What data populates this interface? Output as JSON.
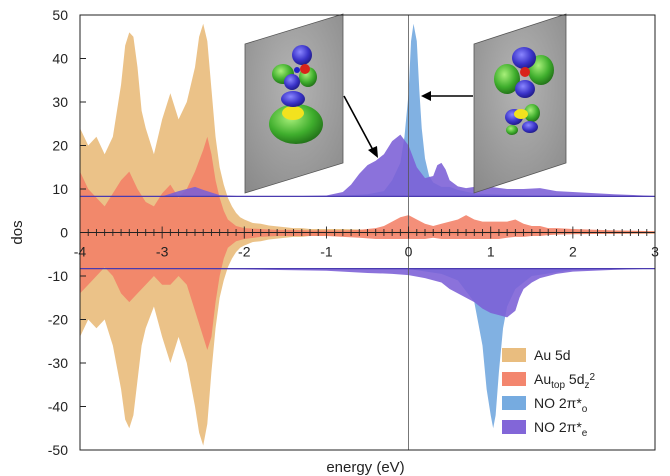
{
  "chart_data": {
    "type": "area",
    "xlabel": "energy (eV)",
    "ylabel": "dos",
    "xlim": [
      -4,
      3
    ],
    "ylim": [
      -50,
      50
    ],
    "x_ticks": [
      -4,
      -3,
      -2,
      -1,
      0,
      1,
      2,
      3
    ],
    "y_ticks": [
      -50,
      -40,
      -30,
      -20,
      -10,
      0,
      10,
      20,
      30,
      40,
      50
    ],
    "legend_position": "bottom-right",
    "series": [
      {
        "name": "Au 5d",
        "legend": {
          "main": "Au  5d"
        },
        "color": "#e8b978",
        "baseline": 0,
        "upper": {
          "x": [
            -4.0,
            -3.9,
            -3.8,
            -3.7,
            -3.6,
            -3.5,
            -3.45,
            -3.4,
            -3.35,
            -3.3,
            -3.25,
            -3.2,
            -3.1,
            -3.0,
            -2.9,
            -2.8,
            -2.7,
            -2.6,
            -2.55,
            -2.5,
            -2.45,
            -2.4,
            -2.35,
            -2.3,
            -2.25,
            -2.2,
            -2.15,
            -2.1,
            -2.05,
            -2.0,
            -1.9,
            -1.8,
            -1.7,
            -1.6,
            -1.5,
            -1.4,
            -1.3,
            -1.2,
            -1.1,
            -1.0,
            -0.8,
            -0.6,
            -0.4,
            -0.2,
            0.0,
            0.2,
            0.4,
            0.6,
            0.8,
            1.0,
            1.2,
            1.5,
            1.8,
            2.0,
            2.5,
            3.0
          ],
          "y": [
            24,
            20,
            22,
            18,
            22,
            34,
            43,
            46,
            45,
            38,
            28,
            24,
            18,
            26,
            32,
            26,
            30,
            38,
            45,
            48,
            44,
            33,
            22,
            15,
            11,
            8,
            6,
            4.5,
            3.5,
            3,
            2.2,
            2.0,
            1.6,
            1.4,
            1.2,
            1.0,
            1.0,
            0.8,
            0.8,
            0.8,
            0.8,
            0.7,
            0.6,
            0.5,
            0.5,
            0.5,
            0.5,
            0.5,
            0.4,
            0.4,
            0.4,
            0.3,
            0.3,
            0.3,
            0.3,
            0.3
          ]
        },
        "lower": {
          "x": [
            -4.0,
            -3.9,
            -3.8,
            -3.7,
            -3.6,
            -3.5,
            -3.45,
            -3.4,
            -3.35,
            -3.3,
            -3.25,
            -3.2,
            -3.1,
            -3.0,
            -2.9,
            -2.8,
            -2.7,
            -2.6,
            -2.55,
            -2.5,
            -2.45,
            -2.4,
            -2.35,
            -2.3,
            -2.25,
            -2.2,
            -2.15,
            -2.1,
            -2.05,
            -2.0,
            -1.9,
            -1.8,
            -1.7,
            -1.6,
            -1.5,
            -1.4,
            -1.3,
            -1.2,
            -1.1,
            -1.0,
            -0.8,
            -0.6,
            -0.4,
            -0.2,
            0.0,
            0.2,
            0.4,
            0.6,
            0.8,
            1.0,
            1.2,
            1.5,
            1.8,
            2.0,
            2.5,
            3.0
          ],
          "y": [
            -24,
            -20,
            -22,
            -20,
            -26,
            -36,
            -43,
            -45,
            -42,
            -34,
            -26,
            -22,
            -17,
            -24,
            -30,
            -24,
            -30,
            -40,
            -46,
            -49,
            -44,
            -32,
            -22,
            -15,
            -11,
            -8,
            -6,
            -4.5,
            -3.5,
            -3,
            -2.2,
            -2.0,
            -1.6,
            -1.4,
            -1.2,
            -1.0,
            -1.0,
            -0.8,
            -0.8,
            -0.8,
            -0.8,
            -0.7,
            -0.6,
            -0.5,
            -0.5,
            -0.5,
            -0.5,
            -0.5,
            -0.4,
            -0.4,
            -0.4,
            -0.3,
            -0.3,
            -0.3,
            -0.3,
            -0.3
          ]
        }
      },
      {
        "name": "Au_top 5d_z2",
        "legend": {
          "main": "Au",
          "sub": "top",
          "mid": " 5d",
          "sub2": "z",
          "sup": "2"
        },
        "color": "#f28066",
        "baseline": 0,
        "upper": {
          "x": [
            -4.0,
            -3.9,
            -3.8,
            -3.7,
            -3.6,
            -3.5,
            -3.4,
            -3.3,
            -3.2,
            -3.1,
            -3.0,
            -2.9,
            -2.8,
            -2.7,
            -2.6,
            -2.5,
            -2.45,
            -2.4,
            -2.35,
            -2.3,
            -2.25,
            -2.2,
            -2.1,
            -2.0,
            -1.8,
            -1.6,
            -1.4,
            -1.2,
            -1.0,
            -0.8,
            -0.6,
            -0.4,
            -0.3,
            -0.2,
            -0.1,
            0.0,
            0.1,
            0.2,
            0.3,
            0.4,
            0.5,
            0.6,
            0.7,
            0.8,
            0.9,
            1.0,
            1.1,
            1.2,
            1.3,
            1.4,
            1.5,
            1.6,
            1.7,
            1.8,
            2.0,
            2.5,
            3.0
          ],
          "y": [
            14,
            10,
            8,
            6,
            9,
            12,
            14,
            10,
            7,
            6,
            9,
            11,
            8,
            10,
            14,
            19,
            22,
            18,
            12,
            8,
            5,
            3,
            1.5,
            1.0,
            0.8,
            0.6,
            0.6,
            0.5,
            0.5,
            0.5,
            0.6,
            1.0,
            1.5,
            2.5,
            3.5,
            4.0,
            3.0,
            2.0,
            1.5,
            2.0,
            2.5,
            3.0,
            4.0,
            3.0,
            2.5,
            2.5,
            2.5,
            2.5,
            3.0,
            2.0,
            1.5,
            1.5,
            1.0,
            1.0,
            0.8,
            0.5,
            0.3
          ]
        },
        "lower": {
          "x": [
            -4.0,
            -3.9,
            -3.8,
            -3.7,
            -3.6,
            -3.5,
            -3.4,
            -3.3,
            -3.2,
            -3.1,
            -3.0,
            -2.9,
            -2.8,
            -2.7,
            -2.6,
            -2.5,
            -2.45,
            -2.4,
            -2.35,
            -2.3,
            -2.25,
            -2.2,
            -2.1,
            -2.0,
            -1.8,
            -1.6,
            -1.4,
            -1.2,
            -1.0,
            -0.8,
            -0.6,
            -0.4,
            -0.3,
            -0.2,
            -0.1,
            0.0,
            0.1,
            0.2,
            0.3,
            0.4,
            0.5,
            0.6,
            0.7,
            0.8,
            0.9,
            1.0,
            1.1,
            1.2,
            1.3,
            1.4,
            1.5,
            1.6,
            1.7,
            1.8,
            2.0,
            2.5,
            3.0
          ],
          "y": [
            -14,
            -12,
            -10,
            -8,
            -10,
            -14,
            -16,
            -14,
            -12,
            -10,
            -12,
            -12,
            -10,
            -12,
            -18,
            -24,
            -27,
            -24,
            -16,
            -10,
            -6,
            -3.5,
            -2.0,
            -1.5,
            -1.0,
            -0.8,
            -0.8,
            -0.8,
            -0.8,
            -1.0,
            -1.2,
            -1.5,
            -1.5,
            -1.5,
            -1.5,
            -1.5,
            -1.5,
            -1.5,
            -1.2,
            -1.5,
            -1.5,
            -1.5,
            -1.5,
            -1.5,
            -1.5,
            -1.5,
            -1.5,
            -1.2,
            -1.0,
            -1.0,
            -0.8,
            -0.8,
            -0.6,
            -0.5,
            -0.4,
            -0.3,
            -0.2
          ]
        }
      },
      {
        "name": "NO 2π*_o",
        "legend": {
          "main": "NO 2π*",
          "sub": "o"
        },
        "color": "#6fa6de",
        "baseline_up": 8.3,
        "baseline_down": -8.3,
        "upper": {
          "x": [
            -4.0,
            -1.0,
            -0.5,
            -0.3,
            -0.2,
            -0.1,
            -0.05,
            0.0,
            0.03,
            0.06,
            0.1,
            0.13,
            0.16,
            0.2,
            0.25,
            0.3,
            0.4,
            0.5,
            0.6,
            0.8,
            1.0,
            1.5,
            2.0,
            3.0
          ],
          "y": [
            8.3,
            8.3,
            8.8,
            9.5,
            12,
            16,
            22,
            32,
            44,
            48,
            44,
            33,
            24,
            17,
            13,
            11.5,
            10.5,
            10.5,
            9.8,
            9.0,
            8.8,
            8.5,
            8.4,
            8.3
          ]
        },
        "lower": {
          "x": [
            -4.0,
            0.0,
            0.4,
            0.6,
            0.8,
            0.9,
            0.95,
            1.0,
            1.03,
            1.06,
            1.1,
            1.15,
            1.2,
            1.3,
            1.5,
            2.0,
            3.0
          ],
          "y": [
            -8.3,
            -8.4,
            -9.5,
            -11,
            -16,
            -26,
            -36,
            -42,
            -45,
            -42,
            -32,
            -22,
            -17,
            -13,
            -10,
            -8.6,
            -8.3
          ]
        }
      },
      {
        "name": "NO 2π*_e",
        "legend": {
          "main": "NO 2π*",
          "sub": "e"
        },
        "color": "#7b5ed6",
        "baseline_up": 8.3,
        "baseline_down": -8.3,
        "upper": {
          "x": [
            -4.0,
            -3.0,
            -2.8,
            -2.6,
            -2.5,
            -2.4,
            -2.3,
            -2.0,
            -1.5,
            -1.0,
            -0.8,
            -0.7,
            -0.6,
            -0.5,
            -0.4,
            -0.3,
            -0.2,
            -0.1,
            0.0,
            0.1,
            0.2,
            0.3,
            0.35,
            0.4,
            0.45,
            0.5,
            0.6,
            0.7,
            0.8,
            0.9,
            1.0,
            1.2,
            1.4,
            1.6,
            1.8,
            2.0,
            2.5,
            3.0
          ],
          "y": [
            8.3,
            8.3,
            9.5,
            10.5,
            9.8,
            9.2,
            8.6,
            8.3,
            8.3,
            8.5,
            9.3,
            11,
            13.5,
            15.5,
            16.5,
            18,
            21,
            22.5,
            20,
            15,
            12.5,
            13,
            15.5,
            16,
            14.5,
            12,
            10.6,
            10.2,
            10.5,
            11,
            10.5,
            10,
            10,
            10.2,
            9.5,
            9.3,
            8.8,
            8.4
          ]
        },
        "lower": {
          "x": [
            -4.0,
            -3.0,
            -2.0,
            -1.0,
            -0.5,
            -0.2,
            0.0,
            0.2,
            0.4,
            0.5,
            0.6,
            0.7,
            0.8,
            0.9,
            1.0,
            1.1,
            1.2,
            1.3,
            1.35,
            1.4,
            1.5,
            1.6,
            1.8,
            2.0,
            2.5,
            3.0
          ],
          "y": [
            -8.3,
            -8.3,
            -8.5,
            -8.8,
            -9.3,
            -9.5,
            -9.8,
            -10.5,
            -11.5,
            -13,
            -14,
            -15,
            -16,
            -17.5,
            -18.5,
            -19,
            -19.5,
            -18,
            -15,
            -13,
            -11.5,
            -10.5,
            -9.5,
            -9.0,
            -8.6,
            -8.3
          ]
        }
      }
    ]
  }
}
